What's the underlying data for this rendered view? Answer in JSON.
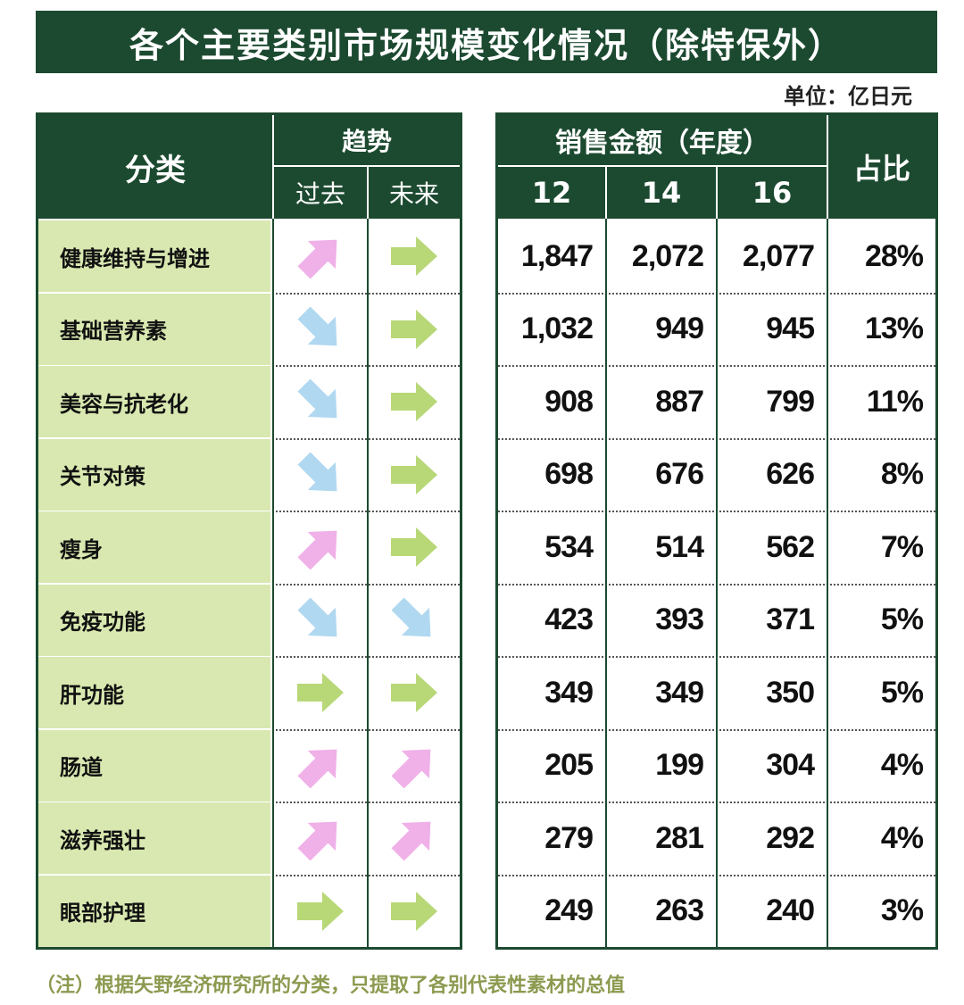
{
  "chart_data": {
    "type": "table",
    "title": "各个主要类别市场规模变化情况（除特保外）",
    "unit": "单位：亿日元",
    "headers": {
      "category": "分类",
      "trend": "趋势",
      "trend_past": "过去",
      "trend_future": "未来",
      "sales": "销售金额（年度）",
      "years": [
        "12",
        "14",
        "16"
      ],
      "share": "占比"
    },
    "rows": [
      {
        "category": "健康维持与增进",
        "past": "up",
        "future": "flat",
        "v12": "1,847",
        "v14": "2,072",
        "v16": "2,077",
        "share": "28%"
      },
      {
        "category": "基础营养素",
        "past": "down",
        "future": "flat",
        "v12": "1,032",
        "v14": "949",
        "v16": "945",
        "share": "13%"
      },
      {
        "category": "美容与抗老化",
        "past": "down",
        "future": "flat",
        "v12": "908",
        "v14": "887",
        "v16": "799",
        "share": "11%"
      },
      {
        "category": "关节对策",
        "past": "down",
        "future": "flat",
        "v12": "698",
        "v14": "676",
        "v16": "626",
        "share": "8%"
      },
      {
        "category": "瘦身",
        "past": "up",
        "future": "flat",
        "v12": "534",
        "v14": "514",
        "v16": "562",
        "share": "7%"
      },
      {
        "category": "免疫功能",
        "past": "down",
        "future": "down",
        "v12": "423",
        "v14": "393",
        "v16": "371",
        "share": "5%"
      },
      {
        "category": "肝功能",
        "past": "flat",
        "future": "flat",
        "v12": "349",
        "v14": "349",
        "v16": "350",
        "share": "5%"
      },
      {
        "category": "肠道",
        "past": "up",
        "future": "up",
        "v12": "205",
        "v14": "199",
        "v16": "304",
        "share": "4%"
      },
      {
        "category": "滋养强壮",
        "past": "up",
        "future": "up",
        "v12": "279",
        "v14": "281",
        "v16": "292",
        "share": "4%"
      },
      {
        "category": "眼部护理",
        "past": "flat",
        "future": "flat",
        "v12": "249",
        "v14": "263",
        "v16": "240",
        "share": "3%"
      }
    ],
    "note": "（注）根据矢野经济研究所的分类，只提取了各别代表性素材的总值",
    "colors": {
      "header_bg": "#1c4a30",
      "label_bg": "#d8e8b0",
      "arrow_up": "#f0b0e8",
      "arrow_down": "#b0d8f0",
      "arrow_flat": "#b8d878"
    }
  }
}
